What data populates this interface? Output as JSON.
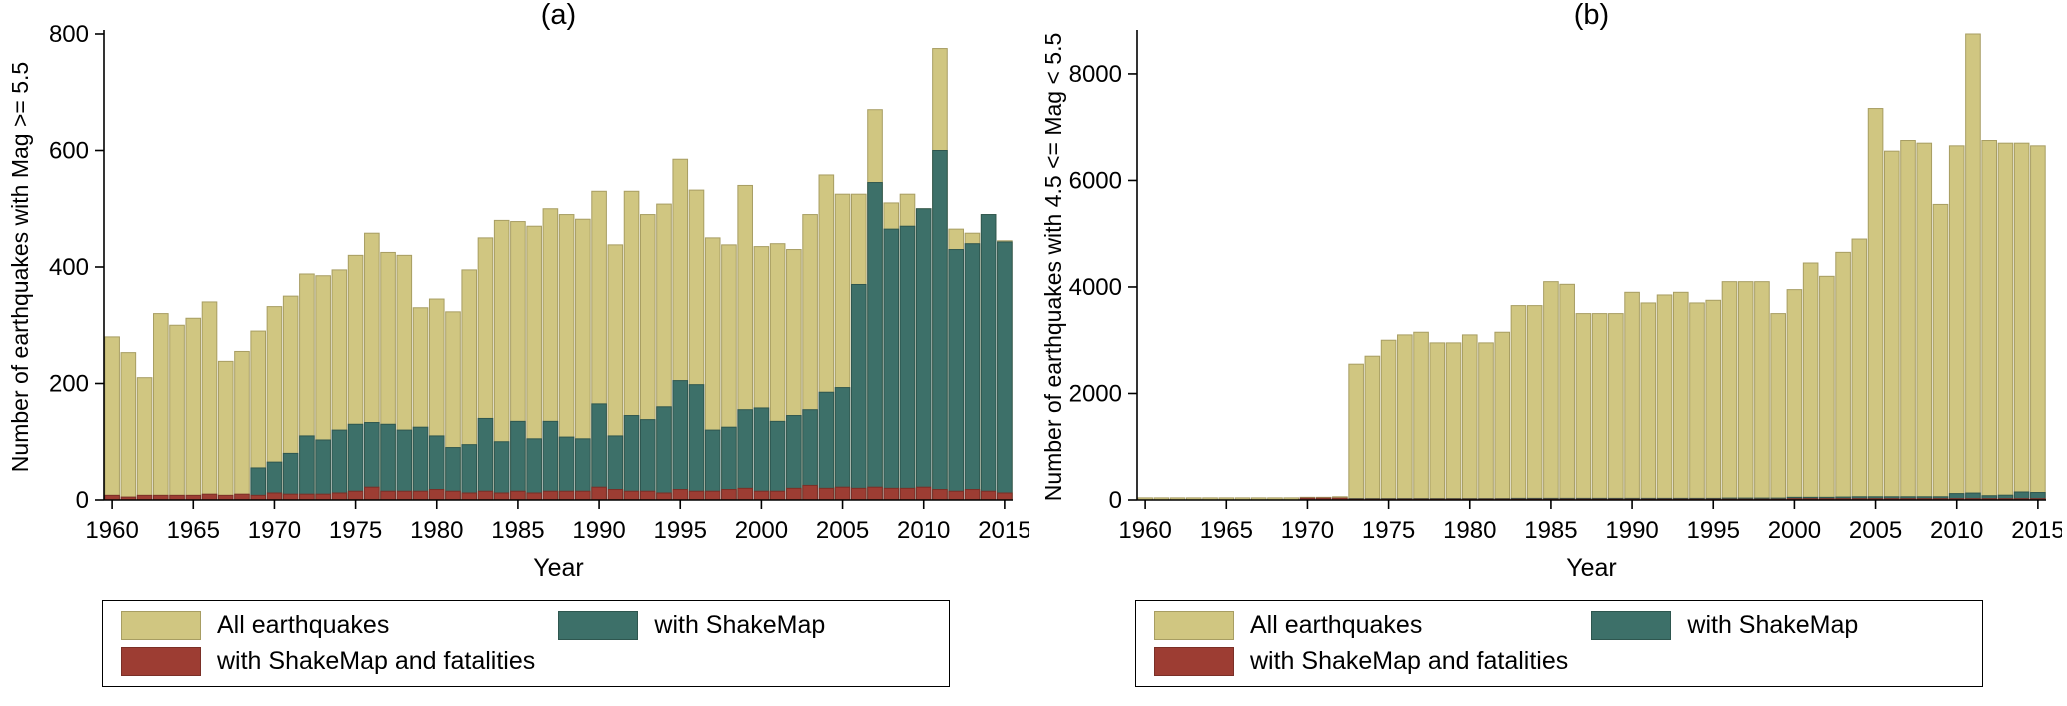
{
  "page": {
    "background": "#ffffff"
  },
  "legend": {
    "items": [
      {
        "label": "All earthquakes",
        "color": "#d0c681",
        "border": "#a79d62"
      },
      {
        "label": "with ShakeMap",
        "color": "#3d7069",
        "border": "#2e564f"
      },
      {
        "label": "with ShakeMap and fatalities",
        "color": "#9d3d33",
        "border": "#7a2f27"
      }
    ]
  },
  "chart_data": [
    {
      "type": "bar",
      "bar_mode": "overlay",
      "title": "(a)",
      "xlabel": "Year",
      "ylabel": "Number of earthquakes with Mag >= 5.5",
      "ylim": [
        0,
        800
      ],
      "yticks": [
        0,
        200,
        400,
        600,
        800
      ],
      "xticks": [
        1960,
        1965,
        1970,
        1975,
        1980,
        1985,
        1990,
        1995,
        2000,
        2005,
        2010,
        2015
      ],
      "grid": false,
      "legend_position": "below",
      "x": [
        1960,
        1961,
        1962,
        1963,
        1964,
        1965,
        1966,
        1967,
        1968,
        1969,
        1970,
        1971,
        1972,
        1973,
        1974,
        1975,
        1976,
        1977,
        1978,
        1979,
        1980,
        1981,
        1982,
        1983,
        1984,
        1985,
        1986,
        1987,
        1988,
        1989,
        1990,
        1991,
        1992,
        1993,
        1994,
        1995,
        1996,
        1997,
        1998,
        1999,
        2000,
        2001,
        2002,
        2003,
        2004,
        2005,
        2006,
        2007,
        2008,
        2009,
        2010,
        2011,
        2012,
        2013,
        2014,
        2015
      ],
      "series": [
        {
          "id": "all-earthquakes",
          "name": "All earthquakes",
          "color": "#d0c681",
          "stroke": "#a79d62",
          "values": [
            280,
            253,
            210,
            320,
            300,
            312,
            340,
            238,
            255,
            290,
            332,
            350,
            388,
            385,
            395,
            420,
            458,
            425,
            420,
            330,
            345,
            323,
            395,
            450,
            480,
            478,
            470,
            500,
            490,
            482,
            530,
            438,
            530,
            490,
            508,
            585,
            532,
            450,
            438,
            540,
            435,
            440,
            430,
            490,
            558,
            525,
            525,
            670,
            510,
            525,
            500,
            775,
            465,
            458,
            490,
            445
          ]
        },
        {
          "id": "with-shakemap",
          "name": "with ShakeMap",
          "color": "#3d7069",
          "stroke": "#2e564f",
          "values": [
            0,
            0,
            0,
            0,
            0,
            0,
            0,
            0,
            0,
            55,
            65,
            80,
            110,
            103,
            120,
            130,
            133,
            130,
            120,
            125,
            110,
            90,
            95,
            140,
            100,
            135,
            105,
            135,
            108,
            105,
            165,
            110,
            145,
            138,
            160,
            205,
            198,
            120,
            125,
            155,
            158,
            135,
            145,
            155,
            185,
            193,
            370,
            545,
            465,
            470,
            500,
            600,
            430,
            440,
            490,
            443
          ]
        },
        {
          "id": "with-shakemap-fatalities",
          "name": "with ShakeMap and fatalities",
          "color": "#9d3d33",
          "stroke": "#7a2f27",
          "values": [
            8,
            5,
            8,
            8,
            8,
            8,
            10,
            8,
            10,
            8,
            12,
            10,
            10,
            10,
            12,
            15,
            22,
            15,
            15,
            15,
            18,
            15,
            12,
            15,
            12,
            15,
            12,
            15,
            15,
            15,
            22,
            18,
            15,
            15,
            12,
            18,
            15,
            15,
            18,
            20,
            15,
            15,
            20,
            25,
            20,
            22,
            20,
            22,
            20,
            20,
            22,
            18,
            15,
            18,
            15,
            12
          ]
        }
      ]
    },
    {
      "type": "bar",
      "bar_mode": "overlay",
      "title": "(b)",
      "xlabel": "Year",
      "ylabel": "Number of earthquakes with 4.5 <= Mag < 5.5",
      "ylim": [
        0,
        8000
      ],
      "yticks": [
        0,
        2000,
        4000,
        6000,
        8000
      ],
      "xticks": [
        1960,
        1965,
        1970,
        1975,
        1980,
        1985,
        1990,
        1995,
        2000,
        2005,
        2010,
        2015
      ],
      "grid": false,
      "legend_position": "below",
      "x": [
        1960,
        1961,
        1962,
        1963,
        1964,
        1965,
        1966,
        1967,
        1968,
        1969,
        1970,
        1971,
        1972,
        1973,
        1974,
        1975,
        1976,
        1977,
        1978,
        1979,
        1980,
        1981,
        1982,
        1983,
        1984,
        1985,
        1986,
        1987,
        1988,
        1989,
        1990,
        1991,
        1992,
        1993,
        1994,
        1995,
        1996,
        1997,
        1998,
        1999,
        2000,
        2001,
        2002,
        2003,
        2004,
        2005,
        2006,
        2007,
        2008,
        2009,
        2010,
        2011,
        2012,
        2013,
        2014,
        2015
      ],
      "series": [
        {
          "id": "all-earthquakes",
          "name": "All earthquakes",
          "color": "#d0c681",
          "stroke": "#a79d62",
          "values": [
            40,
            40,
            40,
            40,
            40,
            40,
            40,
            40,
            40,
            40,
            50,
            50,
            60,
            2550,
            2700,
            3000,
            3100,
            3150,
            2950,
            2950,
            3100,
            2950,
            3150,
            3650,
            3650,
            4100,
            4050,
            3500,
            3500,
            3500,
            3900,
            3700,
            3850,
            3900,
            3700,
            3750,
            4100,
            4100,
            4100,
            3500,
            3950,
            4450,
            4200,
            4650,
            4900,
            7350,
            6550,
            6750,
            6700,
            5550,
            6650,
            8750,
            6750,
            6700,
            6700,
            6650
          ]
        },
        {
          "id": "with-shakemap",
          "name": "with ShakeMap",
          "color": "#3d7069",
          "stroke": "#2e564f",
          "values": [
            0,
            0,
            0,
            0,
            0,
            0,
            0,
            0,
            0,
            0,
            15,
            15,
            15,
            25,
            25,
            25,
            25,
            25,
            25,
            25,
            25,
            25,
            25,
            30,
            30,
            30,
            30,
            30,
            30,
            30,
            30,
            30,
            30,
            30,
            30,
            30,
            35,
            35,
            35,
            35,
            50,
            50,
            50,
            55,
            60,
            60,
            60,
            60,
            60,
            60,
            120,
            130,
            80,
            90,
            150,
            140
          ]
        },
        {
          "id": "with-shakemap-fatalities",
          "name": "with ShakeMap and fatalities",
          "color": "#9d3d33",
          "stroke": "#7a2f27",
          "values": [
            0,
            0,
            0,
            0,
            0,
            0,
            0,
            0,
            0,
            0,
            35,
            35,
            35,
            15,
            15,
            15,
            15,
            15,
            15,
            15,
            15,
            15,
            15,
            15,
            15,
            15,
            15,
            15,
            15,
            15,
            15,
            15,
            15,
            15,
            15,
            15,
            15,
            15,
            15,
            15,
            25,
            25,
            25,
            25,
            25,
            25,
            25,
            25,
            25,
            25,
            25,
            25,
            25,
            25,
            25,
            25
          ]
        }
      ]
    }
  ]
}
